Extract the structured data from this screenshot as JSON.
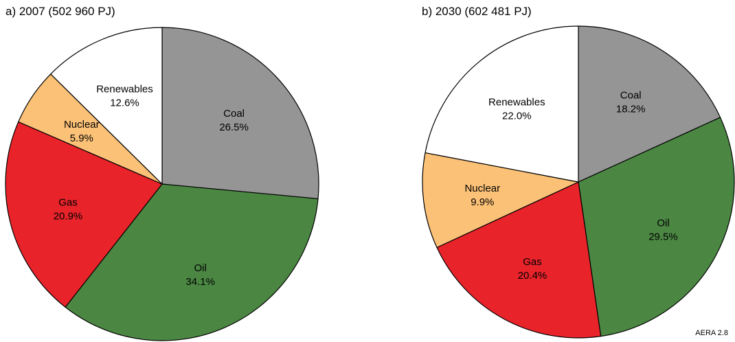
{
  "figure_tag": "AERA 2.8",
  "chart_data": [
    {
      "type": "pie",
      "title": "a) 2007 (502 960 PJ)",
      "slices": [
        {
          "label": "Coal",
          "value": 26.5,
          "value_text": "26.5%",
          "color": "#959595"
        },
        {
          "label": "Oil",
          "value": 34.1,
          "value_text": "34.1%",
          "color": "#4b8743"
        },
        {
          "label": "Gas",
          "value": 20.9,
          "value_text": "20.9%",
          "color": "#e8232a"
        },
        {
          "label": "Nuclear",
          "value": 5.9,
          "value_text": "5.9%",
          "color": "#fbc177"
        },
        {
          "label": "Renewables",
          "value": 12.6,
          "value_text": "12.6%",
          "color": "#ffffff"
        }
      ]
    },
    {
      "type": "pie",
      "title": "b) 2030 (602 481 PJ)",
      "slices": [
        {
          "label": "Coal",
          "value": 18.2,
          "value_text": "18.2%",
          "color": "#959595"
        },
        {
          "label": "Oil",
          "value": 29.5,
          "value_text": "29.5%",
          "color": "#4b8743"
        },
        {
          "label": "Gas",
          "value": 20.4,
          "value_text": "20.4%",
          "color": "#e8232a"
        },
        {
          "label": "Nuclear",
          "value": 9.9,
          "value_text": "9.9%",
          "color": "#fbc177"
        },
        {
          "label": "Renewables",
          "value": 22.0,
          "value_text": "22.0%",
          "color": "#ffffff"
        }
      ]
    }
  ]
}
